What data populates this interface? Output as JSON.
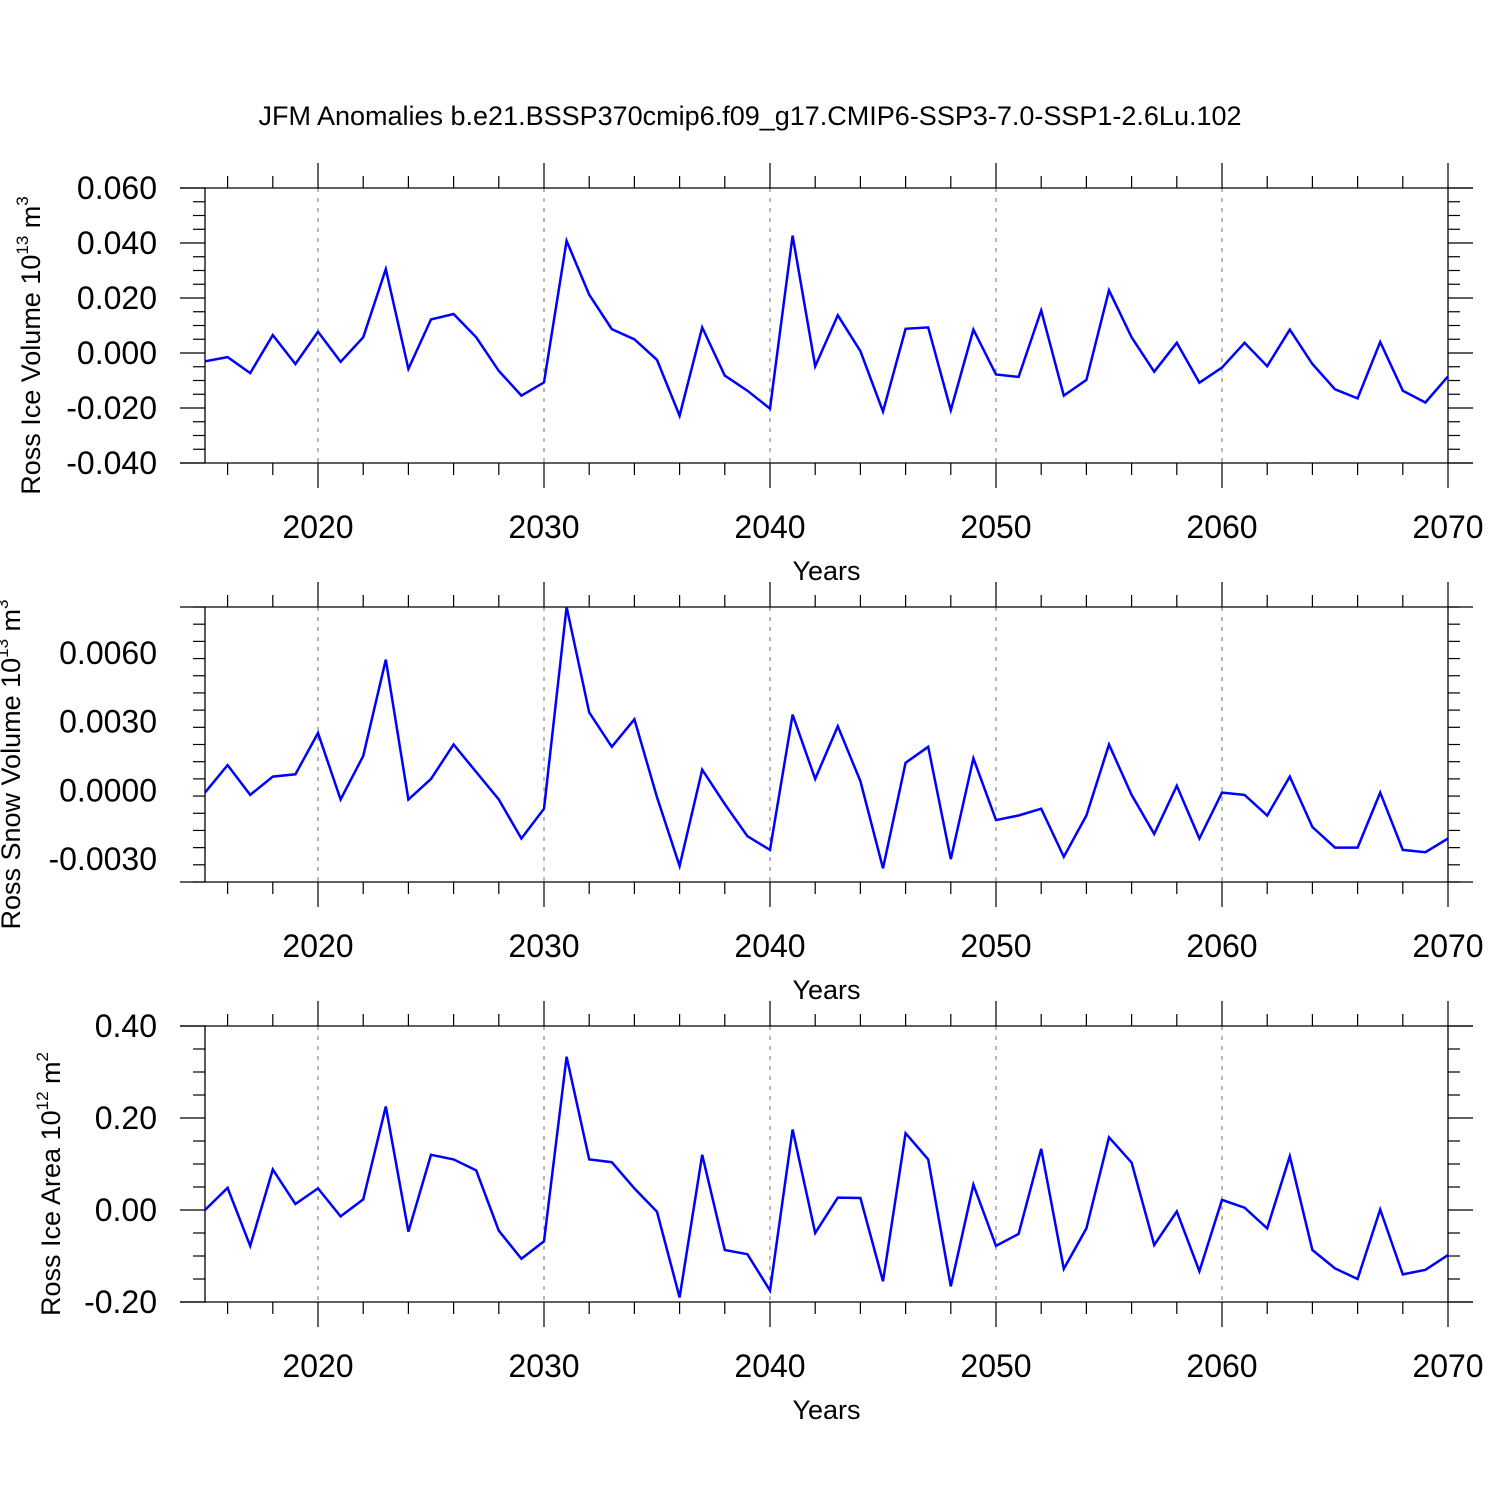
{
  "figure_title": "JFM Anomalies b.e21.BSSP370cmip6.f09_g17.CMIP6-SSP3-7.0-SSP1-2.6Lu.102",
  "chart_data": [
    {
      "type": "line",
      "title": "",
      "xlabel": "Years",
      "ylabel": {
        "text": "Ross Ice Volume 10",
        "sup1": "13",
        "unit": " m",
        "sup2": "3"
      },
      "xlim": [
        2015,
        2070
      ],
      "ylim": [
        -0.04,
        0.06
      ],
      "xticks": [
        2020,
        2030,
        2040,
        2050,
        2060,
        2070
      ],
      "yticks": [
        -0.04,
        -0.02,
        0.0,
        0.02,
        0.04,
        0.06
      ],
      "ytick_labels": [
        "-0.040",
        "-0.020",
        "0.000",
        "0.020",
        "0.040",
        "0.060"
      ],
      "line_color": "#0000ff",
      "grid": "vertical dashed at major x ticks",
      "x": [
        2015,
        2016,
        2017,
        2018,
        2019,
        2020,
        2021,
        2022,
        2023,
        2024,
        2025,
        2026,
        2027,
        2028,
        2029,
        2030,
        2031,
        2032,
        2033,
        2034,
        2035,
        2036,
        2037,
        2038,
        2039,
        2040,
        2041,
        2042,
        2043,
        2044,
        2045,
        2046,
        2047,
        2048,
        2049,
        2050,
        2051,
        2052,
        2053,
        2054,
        2055,
        2056,
        2057,
        2058,
        2059,
        2060,
        2061,
        2062,
        2063,
        2064,
        2065,
        2066,
        2067,
        2068,
        2069,
        2070
      ],
      "values": [
        -0.003,
        -0.0015,
        -0.0073,
        0.0065,
        -0.004,
        0.0077,
        -0.0032,
        0.0057,
        0.0305,
        -0.0058,
        0.0122,
        0.0142,
        0.0057,
        -0.0065,
        -0.0155,
        -0.0107,
        0.0408,
        0.0212,
        0.0087,
        0.005,
        -0.0025,
        -0.0228,
        0.0093,
        -0.0082,
        -0.0137,
        -0.0202,
        0.0427,
        -0.0048,
        0.0137,
        0.0007,
        -0.0213,
        0.0088,
        0.0093,
        -0.0208,
        0.0085,
        -0.0078,
        -0.0087,
        0.0155,
        -0.0155,
        -0.0098,
        0.0228,
        0.0057,
        -0.0068,
        0.0037,
        -0.0108,
        -0.0053,
        0.0037,
        -0.0048,
        0.0085,
        -0.004,
        -0.0132,
        -0.0165,
        0.004,
        -0.0137,
        -0.018,
        -0.0085
      ]
    },
    {
      "type": "line",
      "title": "",
      "xlabel": "Years",
      "ylabel": {
        "text": "Ross Snow Volume 10",
        "sup1": "13",
        "unit": " m",
        "sup2": "3"
      },
      "xlim": [
        2015,
        2070
      ],
      "ylim": [
        -0.004,
        0.008
      ],
      "xticks": [
        2020,
        2030,
        2040,
        2050,
        2060,
        2070
      ],
      "yticks": [
        -0.003,
        0.0,
        0.003,
        0.006
      ],
      "ytick_labels": [
        "-0.0030",
        "0.0000",
        "0.0030",
        "0.0060"
      ],
      "line_color": "#0000ff",
      "grid": "vertical dashed at major x ticks",
      "x": [
        2015,
        2016,
        2017,
        2018,
        2019,
        2020,
        2021,
        2022,
        2023,
        2024,
        2025,
        2026,
        2027,
        2028,
        2029,
        2030,
        2031,
        2032,
        2033,
        2034,
        2035,
        2036,
        2037,
        2038,
        2039,
        2040,
        2041,
        2042,
        2043,
        2044,
        2045,
        2046,
        2047,
        2048,
        2049,
        2050,
        2051,
        2052,
        2053,
        2054,
        2055,
        2056,
        2057,
        2058,
        2059,
        2060,
        2061,
        2062,
        2063,
        2064,
        2065,
        2066,
        2067,
        2068,
        2069,
        2070
      ],
      "values": [
        -0.0001,
        0.0011,
        -0.0002,
        0.0006,
        0.0007,
        0.0025,
        -0.0004,
        0.0015,
        0.0057,
        -0.0004,
        0.0005,
        0.002,
        0.0008,
        -0.0004,
        -0.0021,
        -0.0008,
        0.008,
        0.0034,
        0.0019,
        0.0031,
        -0.0003,
        -0.0033,
        0.0009,
        -0.0006,
        -0.002,
        -0.0026,
        0.0033,
        0.0005,
        0.0028,
        0.0004,
        -0.0034,
        0.0012,
        0.0019,
        -0.003,
        0.0014,
        -0.0013,
        -0.0011,
        -0.0008,
        -0.0029,
        -0.0011,
        0.002,
        -0.0002,
        -0.0019,
        0.0002,
        -0.0021,
        -0.0001,
        -0.0002,
        -0.0011,
        0.0006,
        -0.0016,
        -0.0025,
        -0.0025,
        -0.0001,
        -0.0026,
        -0.0027,
        -0.0021
      ]
    },
    {
      "type": "line",
      "title": "",
      "xlabel": "Years",
      "ylabel": {
        "text": "Ross Ice Area 10",
        "sup1": "12",
        "unit": " m",
        "sup2": "2"
      },
      "xlim": [
        2015,
        2070
      ],
      "ylim": [
        -0.2,
        0.4
      ],
      "xticks": [
        2020,
        2030,
        2040,
        2050,
        2060,
        2070
      ],
      "yticks": [
        -0.2,
        0.0,
        0.2,
        0.4
      ],
      "ytick_labels": [
        "-0.20",
        "0.00",
        "0.20",
        "0.40"
      ],
      "line_color": "#0000ff",
      "grid": "vertical dashed at major x ticks",
      "x": [
        2015,
        2016,
        2017,
        2018,
        2019,
        2020,
        2021,
        2022,
        2023,
        2024,
        2025,
        2026,
        2027,
        2028,
        2029,
        2030,
        2031,
        2032,
        2033,
        2034,
        2035,
        2036,
        2037,
        2038,
        2039,
        2040,
        2041,
        2042,
        2043,
        2044,
        2045,
        2046,
        2047,
        2048,
        2049,
        2050,
        2051,
        2052,
        2053,
        2054,
        2055,
        2056,
        2057,
        2058,
        2059,
        2060,
        2061,
        2062,
        2063,
        2064,
        2065,
        2066,
        2067,
        2068,
        2069,
        2070
      ],
      "values": [
        0.0,
        0.048,
        -0.078,
        0.088,
        0.013,
        0.047,
        -0.014,
        0.023,
        0.225,
        -0.047,
        0.12,
        0.11,
        0.086,
        -0.045,
        -0.106,
        -0.068,
        0.333,
        0.11,
        0.104,
        0.047,
        -0.004,
        -0.19,
        0.12,
        -0.087,
        -0.096,
        -0.175,
        0.175,
        -0.05,
        0.027,
        0.026,
        -0.155,
        0.167,
        0.11,
        -0.166,
        0.055,
        -0.078,
        -0.052,
        0.133,
        -0.128,
        -0.04,
        0.158,
        0.103,
        -0.076,
        -0.003,
        -0.133,
        0.022,
        0.005,
        -0.04,
        0.117,
        -0.087,
        -0.127,
        -0.15,
        0.001,
        -0.14,
        -0.13,
        -0.098
      ]
    }
  ]
}
